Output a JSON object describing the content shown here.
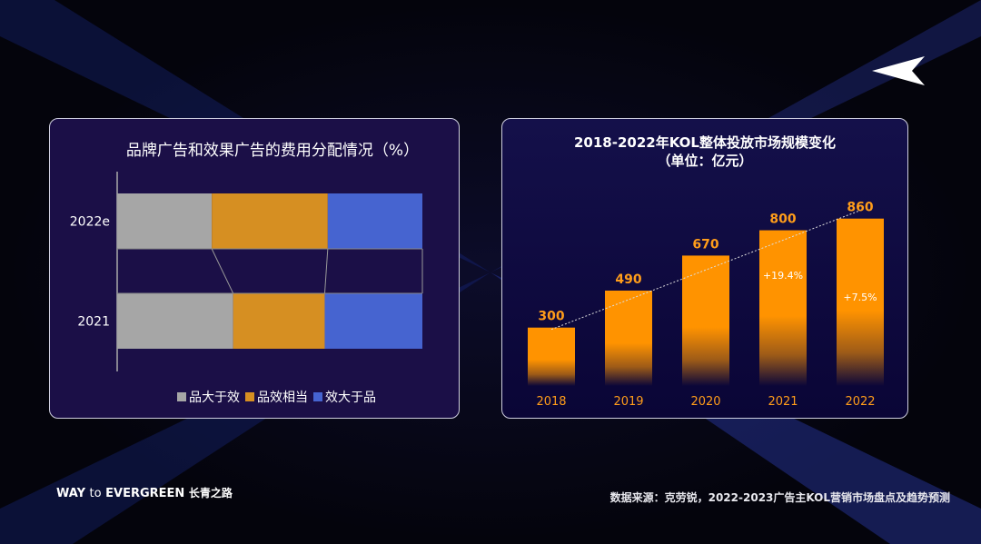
{
  "brand": {
    "way": "WAY",
    "to": "to",
    "evergreen": "EVERGREEN",
    "cn": "长青之路"
  },
  "source": "数据来源：克劳锐，2022-2023广告主KOL营销市场盘点及趋势预测",
  "chart_data": [
    {
      "type": "bar",
      "orientation": "horizontal",
      "stacked": true,
      "percent": true,
      "title": "品牌广告和效果广告的费用分配情况（%）",
      "categories": [
        "2022e",
        "2021"
      ],
      "series": [
        {
          "name": "品大于效",
          "color": "#a6a6a6",
          "values": [
            31,
            38
          ]
        },
        {
          "name": "品效相当",
          "color": "#d68f22",
          "values": [
            38,
            30
          ]
        },
        {
          "name": "效大于品",
          "color": "#4664d0",
          "values": [
            31,
            32
          ]
        }
      ],
      "legend": "bottom",
      "grid": false
    },
    {
      "type": "bar",
      "title": "2018-2022年KOL整体投放市场规模变化",
      "subtitle": "（单位：亿元）",
      "categories": [
        "2018",
        "2019",
        "2020",
        "2021",
        "2022"
      ],
      "values": [
        300,
        490,
        670,
        800,
        860
      ],
      "growth_labels": {
        "2021": "+19.4%",
        "2022": "+7.5%"
      },
      "color": "#ff9300",
      "trendline": true,
      "grid": false
    }
  ]
}
